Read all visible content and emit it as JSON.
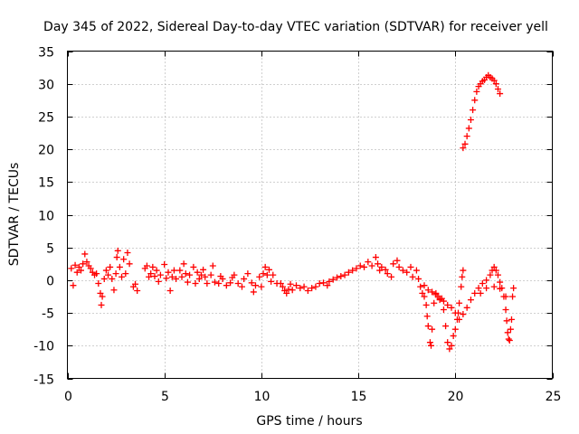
{
  "chart_data": {
    "type": "scatter",
    "title": "Day 345 of 2022, Sidereal Day-to-day VTEC variation (SDTVAR) for receiver yell",
    "xlabel": "GPS time / hours",
    "ylabel": "SDTVAR / TECUs",
    "xlim": [
      0,
      25
    ],
    "ylim": [
      -15,
      35
    ],
    "x_ticks": [
      0,
      5,
      10,
      15,
      20,
      25
    ],
    "y_ticks": [
      -15,
      -10,
      -5,
      0,
      5,
      10,
      15,
      20,
      25,
      30,
      35
    ],
    "x_tick_labels": [
      "0",
      "5",
      "10",
      "15",
      "20",
      "25"
    ],
    "y_tick_labels": [
      "-15",
      "-10",
      "-5",
      "0",
      "5",
      "10",
      "15",
      "20",
      "25",
      "30",
      "35"
    ],
    "grid": true,
    "marker": "plus",
    "color": "#ff0000",
    "series": [
      {
        "name": "SDTVAR",
        "points": [
          [
            0.2,
            1.8
          ],
          [
            0.3,
            -0.8
          ],
          [
            0.4,
            2.3
          ],
          [
            0.5,
            1.2
          ],
          [
            0.6,
            2.0
          ],
          [
            0.7,
            1.5
          ],
          [
            0.8,
            2.5
          ],
          [
            0.9,
            4.0
          ],
          [
            1.0,
            2.8
          ],
          [
            1.1,
            2.2
          ],
          [
            1.2,
            1.8
          ],
          [
            1.3,
            1.2
          ],
          [
            1.4,
            0.8
          ],
          [
            1.5,
            1.0
          ],
          [
            1.6,
            -0.5
          ],
          [
            1.7,
            -2.0
          ],
          [
            1.75,
            -3.8
          ],
          [
            1.8,
            -2.5
          ],
          [
            1.9,
            0.2
          ],
          [
            2.0,
            1.5
          ],
          [
            2.1,
            0.8
          ],
          [
            2.2,
            2.0
          ],
          [
            2.3,
            0.2
          ],
          [
            2.4,
            -1.5
          ],
          [
            2.5,
            1.0
          ],
          [
            2.55,
            3.5
          ],
          [
            2.6,
            4.5
          ],
          [
            2.7,
            2.0
          ],
          [
            2.8,
            0.5
          ],
          [
            2.9,
            3.2
          ],
          [
            3.0,
            1.0
          ],
          [
            3.1,
            4.2
          ],
          [
            3.2,
            2.5
          ],
          [
            3.4,
            -1.0
          ],
          [
            3.5,
            -0.6
          ],
          [
            3.6,
            -1.6
          ],
          [
            4.0,
            1.8
          ],
          [
            4.1,
            2.2
          ],
          [
            4.2,
            0.5
          ],
          [
            4.3,
            1.0
          ],
          [
            4.4,
            2.0
          ],
          [
            4.5,
            0.6
          ],
          [
            4.6,
            1.5
          ],
          [
            4.7,
            -0.2
          ],
          [
            4.8,
            0.8
          ],
          [
            5.0,
            2.4
          ],
          [
            5.1,
            0.3
          ],
          [
            5.2,
            1.2
          ],
          [
            5.3,
            -1.6
          ],
          [
            5.4,
            0.5
          ],
          [
            5.5,
            1.5
          ],
          [
            5.6,
            0.2
          ],
          [
            5.8,
            1.5
          ],
          [
            5.9,
            0.5
          ],
          [
            6.0,
            2.5
          ],
          [
            6.1,
            1.0
          ],
          [
            6.2,
            -0.3
          ],
          [
            6.3,
            0.8
          ],
          [
            6.5,
            2.0
          ],
          [
            6.6,
            -0.5
          ],
          [
            6.7,
            1.2
          ],
          [
            6.8,
            0.2
          ],
          [
            6.9,
            0.8
          ],
          [
            7.0,
            1.6
          ],
          [
            7.1,
            0.5
          ],
          [
            7.2,
            -0.5
          ],
          [
            7.4,
            0.8
          ],
          [
            7.5,
            2.2
          ],
          [
            7.6,
            -0.3
          ],
          [
            7.8,
            -0.5
          ],
          [
            7.9,
            0.6
          ],
          [
            8.0,
            0.2
          ],
          [
            8.2,
            -0.8
          ],
          [
            8.4,
            -0.4
          ],
          [
            8.5,
            0.4
          ],
          [
            8.6,
            0.8
          ],
          [
            8.8,
            -0.5
          ],
          [
            9.0,
            -1.0
          ],
          [
            9.1,
            0.2
          ],
          [
            9.3,
            1.0
          ],
          [
            9.5,
            -0.4
          ],
          [
            9.6,
            -1.8
          ],
          [
            9.7,
            -0.8
          ],
          [
            9.9,
            0.5
          ],
          [
            10.0,
            -1.0
          ],
          [
            10.1,
            1.0
          ],
          [
            10.2,
            2.0
          ],
          [
            10.3,
            0.8
          ],
          [
            10.4,
            1.6
          ],
          [
            10.5,
            -0.2
          ],
          [
            10.6,
            0.8
          ],
          [
            10.8,
            -0.5
          ],
          [
            11.0,
            -0.5
          ],
          [
            11.1,
            -1.0
          ],
          [
            11.2,
            -1.6
          ],
          [
            11.3,
            -2.0
          ],
          [
            11.4,
            -1.4
          ],
          [
            11.5,
            -0.6
          ],
          [
            11.6,
            -1.5
          ],
          [
            11.8,
            -0.8
          ],
          [
            12.0,
            -1.2
          ],
          [
            12.2,
            -1.0
          ],
          [
            12.4,
            -1.6
          ],
          [
            12.6,
            -1.2
          ],
          [
            12.8,
            -1.0
          ],
          [
            13.0,
            -0.5
          ],
          [
            13.2,
            -0.4
          ],
          [
            13.4,
            -0.8
          ],
          [
            13.5,
            -0.2
          ],
          [
            13.7,
            0.1
          ],
          [
            13.9,
            0.4
          ],
          [
            14.1,
            0.6
          ],
          [
            14.3,
            0.8
          ],
          [
            14.5,
            1.2
          ],
          [
            14.7,
            1.5
          ],
          [
            14.9,
            1.8
          ],
          [
            15.1,
            2.2
          ],
          [
            15.3,
            2.0
          ],
          [
            15.5,
            2.8
          ],
          [
            15.7,
            2.2
          ],
          [
            15.9,
            3.5
          ],
          [
            16.0,
            2.5
          ],
          [
            16.1,
            1.5
          ],
          [
            16.2,
            2.0
          ],
          [
            16.4,
            1.6
          ],
          [
            16.5,
            1.0
          ],
          [
            16.7,
            0.5
          ],
          [
            16.8,
            2.5
          ],
          [
            17.0,
            3.0
          ],
          [
            17.1,
            2.0
          ],
          [
            17.3,
            1.5
          ],
          [
            17.5,
            1.2
          ],
          [
            17.7,
            2.0
          ],
          [
            17.8,
            0.5
          ],
          [
            18.0,
            1.5
          ],
          [
            18.1,
            0.2
          ],
          [
            18.2,
            -1.0
          ],
          [
            18.3,
            -2.0
          ],
          [
            18.4,
            -2.5
          ],
          [
            18.5,
            -3.8
          ],
          [
            18.55,
            -5.5
          ],
          [
            18.6,
            -7.0
          ],
          [
            18.7,
            -9.5
          ],
          [
            18.75,
            -10.0
          ],
          [
            18.8,
            -7.5
          ],
          [
            18.9,
            -3.5
          ],
          [
            19.0,
            -2.0
          ],
          [
            19.1,
            -2.5
          ],
          [
            19.2,
            -3.0
          ],
          [
            19.3,
            -2.8
          ],
          [
            19.4,
            -4.5
          ],
          [
            19.5,
            -7.0
          ],
          [
            19.6,
            -9.5
          ],
          [
            19.7,
            -10.5
          ],
          [
            19.8,
            -10.0
          ],
          [
            19.9,
            -8.5
          ],
          [
            20.0,
            -7.5
          ],
          [
            20.1,
            -6.0
          ],
          [
            20.15,
            -5.0
          ],
          [
            20.2,
            -3.5
          ],
          [
            20.3,
            -1.0
          ],
          [
            20.35,
            0.5
          ],
          [
            20.4,
            1.5
          ],
          [
            18.4,
            -0.8
          ],
          [
            18.6,
            -1.5
          ],
          [
            18.8,
            -1.8
          ],
          [
            19.0,
            -2.2
          ],
          [
            19.2,
            -2.8
          ],
          [
            19.4,
            -3.2
          ],
          [
            19.6,
            -3.8
          ],
          [
            19.8,
            -4.2
          ],
          [
            20.0,
            -5.0
          ],
          [
            20.2,
            -6.0
          ],
          [
            20.4,
            -5.2
          ],
          [
            20.6,
            -4.2
          ],
          [
            20.8,
            -3.0
          ],
          [
            21.0,
            -2.0
          ],
          [
            21.2,
            -1.2
          ],
          [
            21.4,
            -0.5
          ],
          [
            21.6,
            0.0
          ],
          [
            21.8,
            0.8
          ],
          [
            21.9,
            1.5
          ],
          [
            22.0,
            2.0
          ],
          [
            22.1,
            1.5
          ],
          [
            22.2,
            0.8
          ],
          [
            22.3,
            -0.3
          ],
          [
            22.4,
            -1.2
          ],
          [
            22.5,
            -2.5
          ],
          [
            22.6,
            -4.5
          ],
          [
            22.65,
            -6.2
          ],
          [
            22.7,
            -8.0
          ],
          [
            22.75,
            -9.0
          ],
          [
            22.8,
            -9.2
          ],
          [
            22.85,
            -7.5
          ],
          [
            22.9,
            -6.0
          ],
          [
            22.95,
            -2.5
          ],
          [
            23.0,
            -1.2
          ],
          [
            21.3,
            -2.0
          ],
          [
            21.6,
            -1.2
          ],
          [
            22.0,
            -1.0
          ],
          [
            22.3,
            -1.3
          ],
          [
            22.6,
            -2.5
          ],
          [
            20.4,
            20.2
          ],
          [
            20.5,
            20.8
          ],
          [
            20.6,
            22.0
          ],
          [
            20.7,
            23.2
          ],
          [
            20.8,
            24.5
          ],
          [
            20.9,
            26.0
          ],
          [
            21.0,
            27.5
          ],
          [
            21.1,
            28.8
          ],
          [
            21.2,
            29.6
          ],
          [
            21.3,
            30.0
          ],
          [
            21.4,
            30.4
          ],
          [
            21.5,
            30.6
          ],
          [
            21.6,
            31.0
          ],
          [
            21.7,
            31.3
          ],
          [
            21.8,
            31.0
          ],
          [
            21.9,
            30.8
          ],
          [
            22.0,
            30.5
          ],
          [
            22.1,
            30.0
          ],
          [
            22.2,
            29.2
          ],
          [
            22.3,
            28.5
          ]
        ]
      }
    ]
  }
}
